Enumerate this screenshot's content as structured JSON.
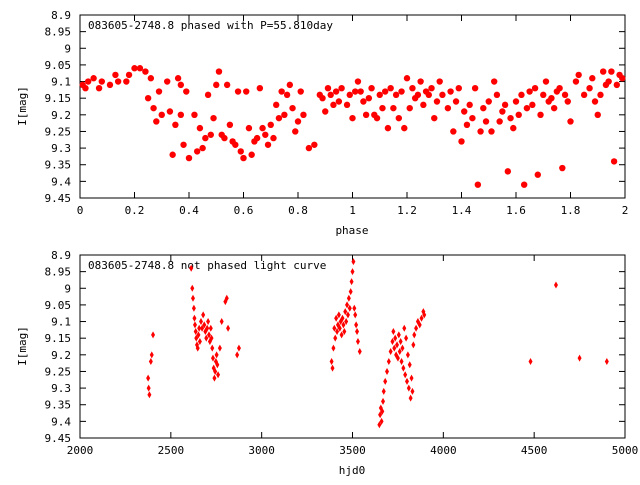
{
  "accent": "#ff0000",
  "chart_data": [
    {
      "type": "scatter",
      "title": "083605-2748.8 phased with P=55.810day",
      "xlabel": "phase",
      "ylabel": "I[mag]",
      "xlim": [
        0,
        2
      ],
      "ylim": [
        9.45,
        8.9
      ],
      "y_inverted": true,
      "xticks": [
        "0",
        "0.2",
        "0.4",
        "0.6",
        "0.8",
        "1",
        "1.2",
        "1.4",
        "1.6",
        "1.8",
        "2"
      ],
      "yticks": [
        "8.9",
        "8.95",
        "9",
        "9.05",
        "9.1",
        "9.15",
        "9.2",
        "9.25",
        "9.3",
        "9.35",
        "9.4",
        "9.45"
      ],
      "marker": "filled-circle",
      "color": "#ff0000",
      "grid": false,
      "legend": "none",
      "points": [
        [
          0.01,
          9.11
        ],
        [
          0.02,
          9.12
        ],
        [
          0.03,
          9.1
        ],
        [
          0.05,
          9.09
        ],
        [
          0.07,
          9.12
        ],
        [
          0.08,
          9.1
        ],
        [
          0.11,
          9.11
        ],
        [
          0.13,
          9.08
        ],
        [
          0.14,
          9.1
        ],
        [
          0.17,
          9.1
        ],
        [
          0.18,
          9.08
        ],
        [
          0.2,
          9.06
        ],
        [
          0.22,
          9.06
        ],
        [
          0.24,
          9.07
        ],
        [
          0.25,
          9.15
        ],
        [
          0.26,
          9.09
        ],
        [
          0.27,
          9.18
        ],
        [
          0.28,
          9.22
        ],
        [
          0.29,
          9.13
        ],
        [
          0.3,
          9.2
        ],
        [
          0.32,
          9.1
        ],
        [
          0.33,
          9.19
        ],
        [
          0.34,
          9.32
        ],
        [
          0.35,
          9.23
        ],
        [
          0.36,
          9.09
        ],
        [
          0.37,
          9.11
        ],
        [
          0.37,
          9.2
        ],
        [
          0.38,
          9.29
        ],
        [
          0.39,
          9.13
        ],
        [
          0.4,
          9.33
        ],
        [
          0.42,
          9.2
        ],
        [
          0.43,
          9.31
        ],
        [
          0.44,
          9.24
        ],
        [
          0.45,
          9.3
        ],
        [
          0.46,
          9.27
        ],
        [
          0.47,
          9.14
        ],
        [
          0.48,
          9.26
        ],
        [
          0.49,
          9.21
        ],
        [
          0.5,
          9.11
        ],
        [
          0.51,
          9.07
        ],
        [
          0.52,
          9.26
        ],
        [
          0.53,
          9.27
        ],
        [
          0.54,
          9.11
        ],
        [
          0.55,
          9.23
        ],
        [
          0.56,
          9.28
        ],
        [
          0.57,
          9.29
        ],
        [
          0.58,
          9.13
        ],
        [
          0.59,
          9.31
        ],
        [
          0.6,
          9.33
        ],
        [
          0.61,
          9.13
        ],
        [
          0.62,
          9.24
        ],
        [
          0.63,
          9.32
        ],
        [
          0.64,
          9.28
        ],
        [
          0.65,
          9.27
        ],
        [
          0.66,
          9.12
        ],
        [
          0.67,
          9.24
        ],
        [
          0.68,
          9.26
        ],
        [
          0.69,
          9.29
        ],
        [
          0.7,
          9.23
        ],
        [
          0.71,
          9.27
        ],
        [
          0.72,
          9.17
        ],
        [
          0.73,
          9.21
        ],
        [
          0.74,
          9.13
        ],
        [
          0.75,
          9.2
        ],
        [
          0.76,
          9.14
        ],
        [
          0.77,
          9.11
        ],
        [
          0.78,
          9.18
        ],
        [
          0.79,
          9.25
        ],
        [
          0.8,
          9.22
        ],
        [
          0.81,
          9.13
        ],
        [
          0.82,
          9.2
        ],
        [
          0.84,
          9.3
        ],
        [
          0.86,
          9.29
        ],
        [
          0.88,
          9.14
        ],
        [
          0.89,
          9.15
        ],
        [
          0.9,
          9.19
        ],
        [
          0.91,
          9.12
        ],
        [
          0.92,
          9.14
        ],
        [
          0.93,
          9.17
        ],
        [
          0.94,
          9.13
        ],
        [
          0.95,
          9.16
        ],
        [
          0.96,
          9.12
        ],
        [
          0.98,
          9.17
        ],
        [
          0.99,
          9.14
        ],
        [
          1.0,
          9.21
        ],
        [
          1.01,
          9.13
        ],
        [
          1.02,
          9.1
        ],
        [
          1.03,
          9.13
        ],
        [
          1.04,
          9.16
        ],
        [
          1.05,
          9.2
        ],
        [
          1.06,
          9.15
        ],
        [
          1.07,
          9.12
        ],
        [
          1.08,
          9.2
        ],
        [
          1.09,
          9.21
        ],
        [
          1.1,
          9.14
        ],
        [
          1.11,
          9.18
        ],
        [
          1.12,
          9.13
        ],
        [
          1.13,
          9.24
        ],
        [
          1.14,
          9.12
        ],
        [
          1.15,
          9.18
        ],
        [
          1.16,
          9.14
        ],
        [
          1.17,
          9.21
        ],
        [
          1.18,
          9.13
        ],
        [
          1.19,
          9.24
        ],
        [
          1.2,
          9.09
        ],
        [
          1.21,
          9.18
        ],
        [
          1.22,
          9.12
        ],
        [
          1.23,
          9.15
        ],
        [
          1.24,
          9.14
        ],
        [
          1.25,
          9.1
        ],
        [
          1.26,
          9.17
        ],
        [
          1.27,
          9.13
        ],
        [
          1.28,
          9.14
        ],
        [
          1.29,
          9.12
        ],
        [
          1.3,
          9.21
        ],
        [
          1.31,
          9.16
        ],
        [
          1.32,
          9.1
        ],
        [
          1.33,
          9.14
        ],
        [
          1.35,
          9.18
        ],
        [
          1.36,
          9.13
        ],
        [
          1.37,
          9.25
        ],
        [
          1.38,
          9.16
        ],
        [
          1.39,
          9.12
        ],
        [
          1.4,
          9.28
        ],
        [
          1.41,
          9.19
        ],
        [
          1.42,
          9.23
        ],
        [
          1.43,
          9.17
        ],
        [
          1.44,
          9.21
        ],
        [
          1.45,
          9.12
        ],
        [
          1.46,
          9.41
        ],
        [
          1.47,
          9.25
        ],
        [
          1.48,
          9.18
        ],
        [
          1.49,
          9.22
        ],
        [
          1.5,
          9.16
        ],
        [
          1.51,
          9.25
        ],
        [
          1.52,
          9.1
        ],
        [
          1.53,
          9.14
        ],
        [
          1.54,
          9.22
        ],
        [
          1.55,
          9.19
        ],
        [
          1.56,
          9.17
        ],
        [
          1.57,
          9.37
        ],
        [
          1.58,
          9.21
        ],
        [
          1.59,
          9.24
        ],
        [
          1.6,
          9.16
        ],
        [
          1.61,
          9.2
        ],
        [
          1.62,
          9.14
        ],
        [
          1.63,
          9.41
        ],
        [
          1.64,
          9.18
        ],
        [
          1.65,
          9.13
        ],
        [
          1.66,
          9.17
        ],
        [
          1.67,
          9.12
        ],
        [
          1.68,
          9.38
        ],
        [
          1.69,
          9.2
        ],
        [
          1.7,
          9.14
        ],
        [
          1.71,
          9.1
        ],
        [
          1.72,
          9.16
        ],
        [
          1.73,
          9.15
        ],
        [
          1.74,
          9.18
        ],
        [
          1.75,
          9.13
        ],
        [
          1.76,
          9.12
        ],
        [
          1.77,
          9.36
        ],
        [
          1.78,
          9.14
        ],
        [
          1.79,
          9.16
        ],
        [
          1.8,
          9.22
        ],
        [
          1.82,
          9.1
        ],
        [
          1.83,
          9.08
        ],
        [
          1.85,
          9.14
        ],
        [
          1.87,
          9.12
        ],
        [
          1.88,
          9.09
        ],
        [
          1.89,
          9.16
        ],
        [
          1.9,
          9.2
        ],
        [
          1.91,
          9.14
        ],
        [
          1.92,
          9.07
        ],
        [
          1.93,
          9.11
        ],
        [
          1.94,
          9.1
        ],
        [
          1.95,
          9.07
        ],
        [
          1.96,
          9.34
        ],
        [
          1.97,
          9.11
        ],
        [
          1.98,
          9.08
        ],
        [
          1.99,
          9.09
        ]
      ]
    },
    {
      "type": "scatter",
      "title": "083605-2748.8 not phased light curve",
      "xlabel": "hjd0",
      "ylabel": "I[mag]",
      "xlim": [
        2000,
        5000
      ],
      "ylim": [
        9.45,
        8.9
      ],
      "y_inverted": true,
      "xticks": [
        "2000",
        "2500",
        "3000",
        "3500",
        "4000",
        "4500",
        "5000"
      ],
      "yticks": [
        "8.9",
        "8.95",
        "9",
        "9.05",
        "9.1",
        "9.15",
        "9.2",
        "9.25",
        "9.3",
        "9.35",
        "9.4",
        "9.45"
      ],
      "marker": "small-diamond",
      "color": "#ff0000",
      "grid": false,
      "legend": "none",
      "points": [
        [
          2375,
          9.27
        ],
        [
          2378,
          9.3
        ],
        [
          2382,
          9.32
        ],
        [
          2390,
          9.22
        ],
        [
          2395,
          9.2
        ],
        [
          2402,
          9.14
        ],
        [
          2612,
          8.94
        ],
        [
          2618,
          9.0
        ],
        [
          2622,
          9.03
        ],
        [
          2627,
          9.06
        ],
        [
          2630,
          9.09
        ],
        [
          2633,
          9.11
        ],
        [
          2637,
          9.13
        ],
        [
          2640,
          9.15
        ],
        [
          2644,
          9.17
        ],
        [
          2648,
          9.18
        ],
        [
          2652,
          9.14
        ],
        [
          2656,
          9.12
        ],
        [
          2660,
          9.16
        ],
        [
          2666,
          9.1
        ],
        [
          2672,
          9.12
        ],
        [
          2678,
          9.08
        ],
        [
          2684,
          9.11
        ],
        [
          2690,
          9.13
        ],
        [
          2695,
          9.15
        ],
        [
          2700,
          9.12
        ],
        [
          2705,
          9.1
        ],
        [
          2710,
          9.14
        ],
        [
          2715,
          9.16
        ],
        [
          2720,
          9.12
        ],
        [
          2724,
          9.15
        ],
        [
          2728,
          9.18
        ],
        [
          2732,
          9.21
        ],
        [
          2736,
          9.24
        ],
        [
          2740,
          9.27
        ],
        [
          2744,
          9.25
        ],
        [
          2748,
          9.22
        ],
        [
          2752,
          9.2
        ],
        [
          2756,
          9.23
        ],
        [
          2760,
          9.26
        ],
        [
          2770,
          9.18
        ],
        [
          2780,
          9.1
        ],
        [
          2800,
          9.04
        ],
        [
          2808,
          9.03
        ],
        [
          2815,
          9.12
        ],
        [
          2865,
          9.2
        ],
        [
          2875,
          9.18
        ],
        [
          3385,
          9.22
        ],
        [
          3390,
          9.24
        ],
        [
          3395,
          9.18
        ],
        [
          3400,
          9.12
        ],
        [
          3405,
          9.15
        ],
        [
          3410,
          9.09
        ],
        [
          3415,
          9.13
        ],
        [
          3420,
          9.11
        ],
        [
          3425,
          9.08
        ],
        [
          3430,
          9.12
        ],
        [
          3435,
          9.1
        ],
        [
          3440,
          9.14
        ],
        [
          3445,
          9.09
        ],
        [
          3450,
          9.11
        ],
        [
          3455,
          9.13
        ],
        [
          3460,
          9.07
        ],
        [
          3465,
          9.1
        ],
        [
          3470,
          9.05
        ],
        [
          3475,
          9.08
        ],
        [
          3480,
          9.03
        ],
        [
          3485,
          9.06
        ],
        [
          3490,
          9.01
        ],
        [
          3495,
          8.98
        ],
        [
          3500,
          8.95
        ],
        [
          3505,
          8.92
        ],
        [
          3510,
          9.06
        ],
        [
          3515,
          9.08
        ],
        [
          3520,
          9.11
        ],
        [
          3525,
          9.13
        ],
        [
          3530,
          9.16
        ],
        [
          3540,
          9.19
        ],
        [
          3648,
          9.41
        ],
        [
          3652,
          9.38
        ],
        [
          3656,
          9.36
        ],
        [
          3660,
          9.4
        ],
        [
          3664,
          9.37
        ],
        [
          3668,
          9.34
        ],
        [
          3672,
          9.31
        ],
        [
          3680,
          9.28
        ],
        [
          3690,
          9.25
        ],
        [
          3700,
          9.22
        ],
        [
          3710,
          9.19
        ],
        [
          3720,
          9.16
        ],
        [
          3725,
          9.13
        ],
        [
          3730,
          9.18
        ],
        [
          3735,
          9.15
        ],
        [
          3740,
          9.2
        ],
        [
          3745,
          9.17
        ],
        [
          3750,
          9.21
        ],
        [
          3755,
          9.14
        ],
        [
          3760,
          9.19
        ],
        [
          3765,
          9.16
        ],
        [
          3770,
          9.22
        ],
        [
          3775,
          9.18
        ],
        [
          3780,
          9.24
        ],
        [
          3785,
          9.12
        ],
        [
          3790,
          9.26
        ],
        [
          3795,
          9.15
        ],
        [
          3800,
          9.28
        ],
        [
          3805,
          9.2
        ],
        [
          3810,
          9.3
        ],
        [
          3815,
          9.23
        ],
        [
          3820,
          9.33
        ],
        [
          3825,
          9.27
        ],
        [
          3830,
          9.31
        ],
        [
          3835,
          9.17
        ],
        [
          3840,
          9.14
        ],
        [
          3850,
          9.12
        ],
        [
          3860,
          9.1
        ],
        [
          3870,
          9.11
        ],
        [
          3880,
          9.09
        ],
        [
          3890,
          9.07
        ],
        [
          3895,
          9.08
        ],
        [
          4480,
          9.22
        ],
        [
          4620,
          8.99
        ],
        [
          4750,
          9.21
        ],
        [
          4900,
          9.22
        ]
      ]
    }
  ]
}
